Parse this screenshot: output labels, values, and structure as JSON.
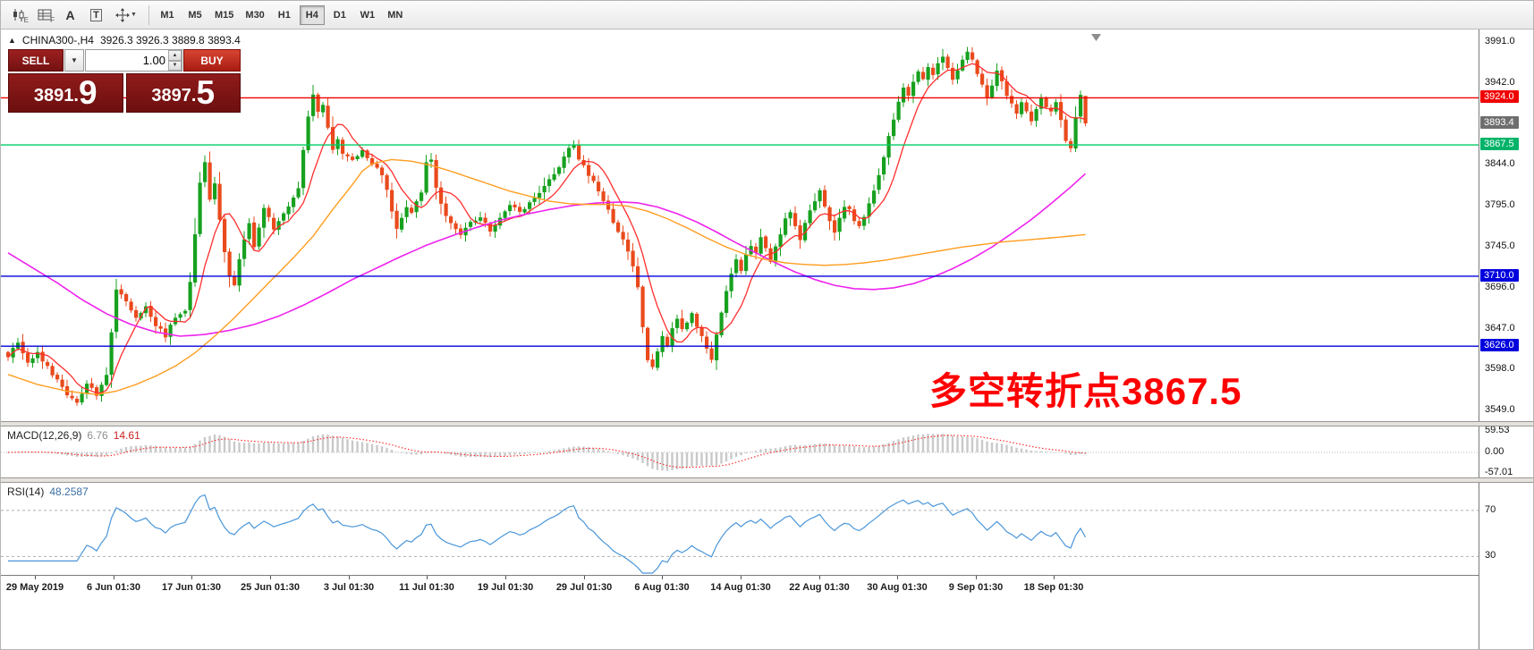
{
  "toolbar": {
    "icon_badges": {
      "chart": "E",
      "grid": "F"
    },
    "letter_icons": {
      "annotation": "A",
      "textbox": "T"
    },
    "dropdown_caret": "▼",
    "timeframes": [
      "M1",
      "M5",
      "M15",
      "M30",
      "H1",
      "H4",
      "D1",
      "W1",
      "MN"
    ],
    "active_timeframe": "H4"
  },
  "symbol_bar": {
    "collapse_icon": "▲",
    "symbol": "CHINA300-,H4",
    "ohlc": "3926.3 3926.3 3889.8 3893.4"
  },
  "trade_panel": {
    "sell_label": "SELL",
    "buy_label": "BUY",
    "volume": "1.00",
    "spinner_up": "▲",
    "spinner_down": "▼",
    "dropdown": "▼",
    "sell_price_main": "3891.",
    "sell_price_big": "9",
    "buy_price_main": "3897.",
    "buy_price_big": "5"
  },
  "price_axis": {
    "scale_labels": [
      "3991.0",
      "3942.0",
      "3844.0",
      "3795.0",
      "3745.0",
      "3696.0",
      "3647.0",
      "3598.0",
      "3549.0"
    ],
    "tags": [
      {
        "label": "3924.0",
        "price": 3924.0,
        "color": "#f00000",
        "name": "resistance-price-tag"
      },
      {
        "label": "3893.4",
        "price": 3893.4,
        "color": "#6e6e6e",
        "name": "current-price-tag"
      },
      {
        "label": "3867.5",
        "price": 3867.5,
        "color": "#00b368",
        "name": "pivot-price-tag"
      },
      {
        "label": "3710.0",
        "price": 3710.0,
        "color": "#0000dd",
        "name": "support1-price-tag"
      },
      {
        "label": "3626.0",
        "price": 3626.0,
        "color": "#0000dd",
        "name": "support2-price-tag"
      }
    ]
  },
  "hlines": [
    {
      "price": 3924.0,
      "color": "#f00000",
      "name": "resistance-line"
    },
    {
      "price": 3867.5,
      "color": "#00cc66",
      "name": "pivot-line"
    },
    {
      "price": 3710.0,
      "color": "#0000dd",
      "name": "support-line-1"
    },
    {
      "price": 3626.0,
      "color": "#0000dd",
      "name": "support-line-2"
    }
  ],
  "annotation": {
    "text": "多空转折点3867.5",
    "color": "#ff0000"
  },
  "macd_panel": {
    "label": "MACD(12,26,9)",
    "value_main": "6.76",
    "value_signal": "14.61",
    "axis": [
      "59.53",
      "0.00",
      "-57.01"
    ],
    "range": [
      -57.01,
      59.53
    ]
  },
  "rsi_panel": {
    "label": "RSI(14)",
    "value": "48.2587",
    "levels": [
      "70",
      "30"
    ]
  },
  "time_axis": {
    "labels": [
      "29 May 2019",
      "6 Jun 01:30",
      "17 Jun 01:30",
      "25 Jun 01:30",
      "3 Jul 01:30",
      "11 Jul 01:30",
      "19 Jul 01:30",
      "29 Jul 01:30",
      "6 Aug 01:30",
      "14 Aug 01:30",
      "22 Aug 01:30",
      "30 Aug 01:30",
      "9 Sep 01:30",
      "18 Sep 01:30"
    ]
  },
  "chart_data": {
    "type": "candlestick",
    "symbol": "CHINA300-",
    "timeframe": "H4",
    "bars": 220,
    "visible_price_high": 3991.0,
    "visible_price_low": 3549.0,
    "last_bar": {
      "open": 3926.3,
      "high": 3926.3,
      "low": 3889.8,
      "close": 3893.4
    },
    "ma_fast_period": 8,
    "macd_params": [
      12,
      26,
      9
    ],
    "rsi_period": 14,
    "price_path_anchors": [
      [
        0,
        3615
      ],
      [
        2,
        3628
      ],
      [
        4,
        3605
      ],
      [
        6,
        3618
      ],
      [
        8,
        3600
      ],
      [
        10,
        3586
      ],
      [
        12,
        3568
      ],
      [
        14,
        3556
      ],
      [
        16,
        3582
      ],
      [
        18,
        3565
      ],
      [
        20,
        3592
      ],
      [
        21,
        3642
      ],
      [
        22,
        3695
      ],
      [
        24,
        3678
      ],
      [
        26,
        3658
      ],
      [
        28,
        3674
      ],
      [
        30,
        3652
      ],
      [
        32,
        3638
      ],
      [
        34,
        3662
      ],
      [
        36,
        3668
      ],
      [
        37,
        3705
      ],
      [
        38,
        3762
      ],
      [
        39,
        3820
      ],
      [
        40,
        3848
      ],
      [
        41,
        3802
      ],
      [
        42,
        3822
      ],
      [
        43,
        3778
      ],
      [
        44,
        3740
      ],
      [
        45,
        3712
      ],
      [
        46,
        3698
      ],
      [
        47,
        3732
      ],
      [
        48,
        3756
      ],
      [
        49,
        3772
      ],
      [
        50,
        3746
      ],
      [
        52,
        3790
      ],
      [
        54,
        3768
      ],
      [
        56,
        3786
      ],
      [
        58,
        3802
      ],
      [
        59,
        3818
      ],
      [
        60,
        3862
      ],
      [
        61,
        3900
      ],
      [
        62,
        3930
      ],
      [
        63,
        3906
      ],
      [
        64,
        3916
      ],
      [
        65,
        3886
      ],
      [
        66,
        3860
      ],
      [
        67,
        3876
      ],
      [
        68,
        3856
      ],
      [
        70,
        3850
      ],
      [
        72,
        3862
      ],
      [
        74,
        3846
      ],
      [
        76,
        3832
      ],
      [
        77,
        3812
      ],
      [
        78,
        3788
      ],
      [
        79,
        3768
      ],
      [
        80,
        3780
      ],
      [
        81,
        3795
      ],
      [
        82,
        3788
      ],
      [
        83,
        3802
      ],
      [
        84,
        3812
      ],
      [
        85,
        3846
      ],
      [
        86,
        3850
      ],
      [
        87,
        3818
      ],
      [
        88,
        3795
      ],
      [
        90,
        3772
      ],
      [
        92,
        3758
      ],
      [
        94,
        3775
      ],
      [
        96,
        3782
      ],
      [
        98,
        3766
      ],
      [
        100,
        3778
      ],
      [
        102,
        3795
      ],
      [
        104,
        3786
      ],
      [
        106,
        3800
      ],
      [
        108,
        3812
      ],
      [
        110,
        3826
      ],
      [
        112,
        3842
      ],
      [
        114,
        3862
      ],
      [
        115,
        3868
      ],
      [
        116,
        3852
      ],
      [
        118,
        3832
      ],
      [
        120,
        3812
      ],
      [
        122,
        3788
      ],
      [
        124,
        3762
      ],
      [
        126,
        3742
      ],
      [
        127,
        3722
      ],
      [
        128,
        3698
      ],
      [
        129,
        3648
      ],
      [
        130,
        3610
      ],
      [
        131,
        3600
      ],
      [
        132,
        3618
      ],
      [
        133,
        3640
      ],
      [
        134,
        3628
      ],
      [
        135,
        3648
      ],
      [
        136,
        3660
      ],
      [
        137,
        3645
      ],
      [
        138,
        3655
      ],
      [
        139,
        3668
      ],
      [
        140,
        3650
      ],
      [
        141,
        3638
      ],
      [
        142,
        3622
      ],
      [
        143,
        3612
      ],
      [
        144,
        3640
      ],
      [
        145,
        3668
      ],
      [
        146,
        3692
      ],
      [
        147,
        3712
      ],
      [
        148,
        3728
      ],
      [
        149,
        3715
      ],
      [
        150,
        3735
      ],
      [
        151,
        3748
      ],
      [
        152,
        3738
      ],
      [
        153,
        3755
      ],
      [
        154,
        3742
      ],
      [
        155,
        3728
      ],
      [
        156,
        3748
      ],
      [
        157,
        3760
      ],
      [
        158,
        3778
      ],
      [
        159,
        3785
      ],
      [
        160,
        3768
      ],
      [
        161,
        3752
      ],
      [
        162,
        3772
      ],
      [
        163,
        3788
      ],
      [
        164,
        3800
      ],
      [
        165,
        3812
      ],
      [
        166,
        3795
      ],
      [
        167,
        3778
      ],
      [
        168,
        3762
      ],
      [
        169,
        3778
      ],
      [
        170,
        3795
      ],
      [
        171,
        3788
      ],
      [
        172,
        3775
      ],
      [
        173,
        3768
      ],
      [
        174,
        3782
      ],
      [
        175,
        3798
      ],
      [
        176,
        3812
      ],
      [
        177,
        3832
      ],
      [
        178,
        3855
      ],
      [
        179,
        3878
      ],
      [
        180,
        3898
      ],
      [
        181,
        3920
      ],
      [
        182,
        3938
      ],
      [
        183,
        3925
      ],
      [
        184,
        3945
      ],
      [
        185,
        3958
      ],
      [
        186,
        3948
      ],
      [
        187,
        3962
      ],
      [
        188,
        3952
      ],
      [
        189,
        3968
      ],
      [
        190,
        3975
      ],
      [
        191,
        3962
      ],
      [
        192,
        3948
      ],
      [
        193,
        3958
      ],
      [
        194,
        3972
      ],
      [
        195,
        3980
      ],
      [
        196,
        3968
      ],
      [
        197,
        3952
      ],
      [
        198,
        3938
      ],
      [
        199,
        3925
      ],
      [
        200,
        3940
      ],
      [
        201,
        3955
      ],
      [
        202,
        3942
      ],
      [
        203,
        3928
      ],
      [
        204,
        3915
      ],
      [
        205,
        3905
      ],
      [
        206,
        3918
      ],
      [
        207,
        3908
      ],
      [
        208,
        3898
      ],
      [
        209,
        3912
      ],
      [
        210,
        3922
      ],
      [
        211,
        3915
      ],
      [
        212,
        3908
      ],
      [
        213,
        3918
      ],
      [
        214,
        3895
      ],
      [
        215,
        3872
      ],
      [
        216,
        3865
      ],
      [
        217,
        3900
      ],
      [
        218,
        3926
      ],
      [
        219,
        3893
      ]
    ],
    "ma_medium_anchors": [
      [
        0,
        3738
      ],
      [
        5,
        3720
      ],
      [
        10,
        3702
      ],
      [
        15,
        3682
      ],
      [
        20,
        3665
      ],
      [
        25,
        3652
      ],
      [
        30,
        3643
      ],
      [
        35,
        3638
      ],
      [
        40,
        3640
      ],
      [
        45,
        3645
      ],
      [
        50,
        3652
      ],
      [
        55,
        3662
      ],
      [
        60,
        3675
      ],
      [
        65,
        3690
      ],
      [
        70,
        3706
      ],
      [
        75,
        3720
      ],
      [
        80,
        3734
      ],
      [
        85,
        3747
      ],
      [
        90,
        3758
      ],
      [
        95,
        3768
      ],
      [
        100,
        3777
      ],
      [
        105,
        3784
      ],
      [
        110,
        3790
      ],
      [
        115,
        3795
      ],
      [
        120,
        3798
      ],
      [
        125,
        3799
      ],
      [
        128,
        3798
      ],
      [
        132,
        3793
      ],
      [
        136,
        3785
      ],
      [
        140,
        3775
      ],
      [
        144,
        3763
      ],
      [
        148,
        3750
      ],
      [
        152,
        3738
      ],
      [
        156,
        3726
      ],
      [
        160,
        3715
      ],
      [
        164,
        3706
      ],
      [
        168,
        3699
      ],
      [
        172,
        3695
      ],
      [
        176,
        3694
      ],
      [
        180,
        3696
      ],
      [
        184,
        3701
      ],
      [
        188,
        3709
      ],
      [
        192,
        3719
      ],
      [
        196,
        3731
      ],
      [
        200,
        3745
      ],
      [
        204,
        3761
      ],
      [
        208,
        3778
      ],
      [
        212,
        3797
      ],
      [
        216,
        3817
      ],
      [
        219,
        3833
      ]
    ],
    "ma_slow_anchors": [
      [
        0,
        3592
      ],
      [
        6,
        3580
      ],
      [
        12,
        3572
      ],
      [
        18,
        3568
      ],
      [
        22,
        3572
      ],
      [
        26,
        3580
      ],
      [
        30,
        3590
      ],
      [
        34,
        3602
      ],
      [
        38,
        3618
      ],
      [
        42,
        3638
      ],
      [
        46,
        3660
      ],
      [
        50,
        3684
      ],
      [
        54,
        3708
      ],
      [
        58,
        3732
      ],
      [
        62,
        3758
      ],
      [
        66,
        3790
      ],
      [
        70,
        3820
      ],
      [
        72,
        3836
      ],
      [
        74,
        3845
      ],
      [
        78,
        3850
      ],
      [
        82,
        3848
      ],
      [
        86,
        3843
      ],
      [
        90,
        3836
      ],
      [
        94,
        3828
      ],
      [
        98,
        3820
      ],
      [
        102,
        3812
      ],
      [
        106,
        3806
      ],
      [
        110,
        3800
      ],
      [
        114,
        3797
      ],
      [
        118,
        3796
      ],
      [
        122,
        3796
      ],
      [
        126,
        3794
      ],
      [
        130,
        3788
      ],
      [
        134,
        3779
      ],
      [
        138,
        3768
      ],
      [
        142,
        3756
      ],
      [
        146,
        3745
      ],
      [
        150,
        3736
      ],
      [
        154,
        3730
      ],
      [
        158,
        3726
      ],
      [
        162,
        3724
      ],
      [
        166,
        3723
      ],
      [
        170,
        3724
      ],
      [
        174,
        3726
      ],
      [
        178,
        3729
      ],
      [
        182,
        3733
      ],
      [
        186,
        3737
      ],
      [
        190,
        3741
      ],
      [
        194,
        3745
      ],
      [
        198,
        3748
      ],
      [
        202,
        3751
      ],
      [
        206,
        3753
      ],
      [
        210,
        3755
      ],
      [
        214,
        3757
      ],
      [
        219,
        3760
      ]
    ],
    "colors": {
      "candle_up": "#17a11f",
      "candle_down": "#ea4a1c",
      "ma_fast": "#ff2d2d",
      "ma_medium": "#ee22ee",
      "ma_slow": "#ff9d20",
      "macd_histogram": "#c9c9c9",
      "macd_signal": "#ff2222",
      "rsi_line": "#4a96d9",
      "rsi_levels": "#b0b0b0"
    }
  }
}
